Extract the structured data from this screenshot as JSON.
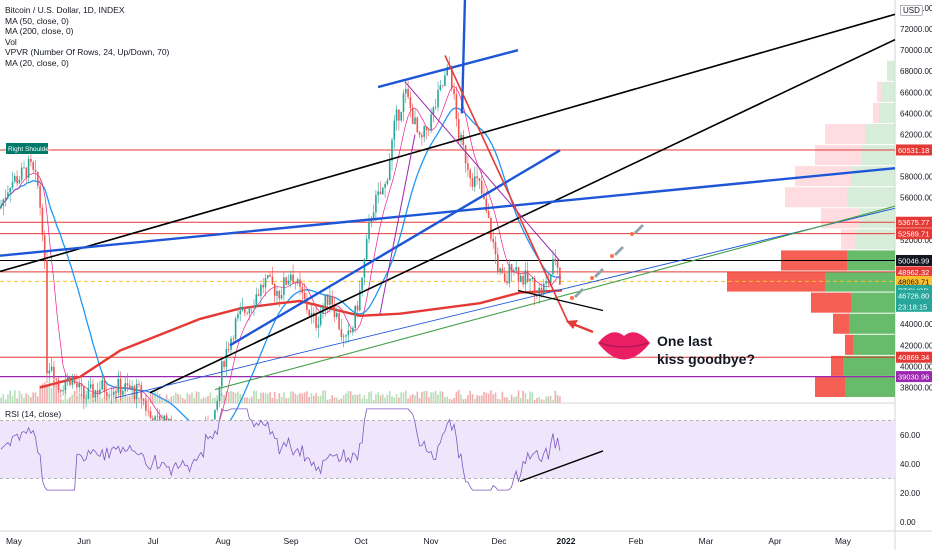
{
  "legend": {
    "title": "Bitcoin / U.S. Dollar, 1D, INDEX",
    "indicators": [
      "MA (50, close, 0)",
      "MA (200, close, 0)",
      "Vol",
      "VPVR (Number Of Rows, 24, Up/Down, 70)",
      "MA (20, close, 0)"
    ]
  },
  "rsi_legend": "RSI (14, close)",
  "currency_button": "USD",
  "colors": {
    "price_axis_text": "#131722",
    "ma50": "#2196f3",
    "ma200": "#e53935",
    "ma20": "#e91e8c",
    "volume": "#f44336",
    "rsi": "#7e57c2",
    "rsi_band": "#efe6fb",
    "vpvr_up": "#4caf50",
    "vpvr_down": "#f44336",
    "trend_black": "#000000",
    "trend_blue": "#1e56d8",
    "trend_green": "#43a047",
    "line_red": "#e53935",
    "line_purple": "#9c27b0"
  },
  "chart_data": {
    "type": "line",
    "series": [
      {
        "name": "BTCUSD",
        "candles": "daily"
      }
    ],
    "x_ticks": [
      "May",
      "Jun",
      "Jul",
      "Aug",
      "Sep",
      "Oct",
      "Nov",
      "Dec",
      "2022",
      "Feb",
      "Mar",
      "Apr",
      "May"
    ],
    "y_ticks": [
      74000,
      72000,
      70000,
      68000,
      66000,
      64000,
      62000,
      58000,
      56000,
      52000,
      50000,
      48000,
      44000,
      42000,
      40000,
      38000
    ],
    "ylim": [
      37000,
      74000
    ],
    "price_labels": [
      {
        "label": "60531.18",
        "value": 60531.18,
        "color": "#e53935"
      },
      {
        "label": "53675.77",
        "value": 53675.77,
        "color": "#e53935"
      },
      {
        "label": "52589.71",
        "value": 52589.71,
        "color": "#e53935"
      },
      {
        "label": "50046.99",
        "value": 50046.99,
        "color": "#131722"
      },
      {
        "label": "48962.32",
        "value": 48962.32,
        "color": "#e53935"
      },
      {
        "label": "48063.71",
        "value": 48063.71,
        "color": "#fbc02d"
      },
      {
        "label": "BTCUSD",
        "value": 47200,
        "color": "#26a69a"
      },
      {
        "label": "46726.80",
        "value": 46726.8,
        "color": "#26a69a"
      },
      {
        "label": "23:18:15",
        "value": 45700,
        "color": "#26a69a"
      },
      {
        "label": "40869.34",
        "value": 40869.34,
        "color": "#e53935"
      },
      {
        "label": "39030.96",
        "value": 39030.96,
        "color": "#9c27b0"
      }
    ],
    "rsi": {
      "yticks": [
        60,
        40,
        20,
        0
      ],
      "labels": [
        "60.00",
        "40.00",
        "20.00",
        "0.00"
      ],
      "band": [
        30,
        70
      ]
    },
    "annotations": [
      "Right Shoulder",
      "One last kiss goodbye?"
    ]
  }
}
